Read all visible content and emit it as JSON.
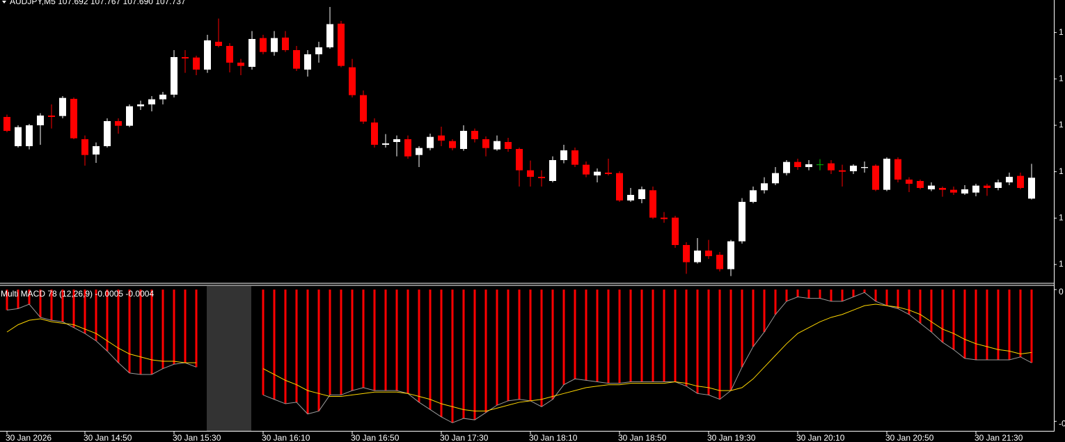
{
  "chart_data": [
    {
      "type": "candlestick",
      "title": "AUDJPY,M5  107.692 107.767 107.690 107.737",
      "categories": [
        "30 Jan 2026",
        null,
        null,
        null,
        null,
        null,
        null,
        "30 Jan 14:50",
        null,
        null,
        null,
        null,
        null,
        null,
        null,
        "30 Jan 15:30",
        null,
        null,
        null,
        null,
        null,
        null,
        null,
        "30 Jan 16:10",
        null,
        null,
        null,
        null,
        null,
        null,
        null,
        "30 Jan 16:50",
        null,
        null,
        null,
        null,
        null,
        null,
        null,
        "30 Jan 17:30",
        null,
        null,
        null,
        null,
        null,
        null,
        null,
        "30 Jan 18:10",
        null,
        null,
        null,
        null,
        null,
        null,
        null,
        "30 Jan 18:50",
        null,
        null,
        null,
        null,
        null,
        null,
        null,
        "30 Jan 19:30",
        null,
        null,
        null,
        null,
        null,
        null,
        null,
        "30 Jan 20:10",
        null,
        null,
        null,
        null,
        null,
        null,
        null,
        "30 Jan 20:50",
        null,
        null,
        null,
        null,
        null,
        null,
        null,
        "30 Jan 21:30",
        null,
        null,
        null,
        null,
        null
      ],
      "open": [
        107.868,
        107.805,
        107.805,
        107.85,
        107.871,
        107.87,
        107.907,
        107.82,
        107.787,
        107.805,
        107.859,
        107.849,
        107.891,
        107.895,
        107.906,
        107.916,
        107.997,
        107.996,
        107.97,
        108.03,
        108.021,
        107.985,
        107.976,
        108.038,
        108.008,
        108.039,
        108.012,
        107.97,
        108.003,
        108.018,
        108.069,
        107.975,
        107.915,
        107.856,
        107.808,
        107.814,
        107.82,
        107.786,
        107.801,
        107.828,
        107.816,
        107.799,
        107.838,
        107.82,
        107.798,
        107.814,
        107.799,
        107.753,
        107.739,
        107.73,
        107.775,
        107.796,
        107.765,
        107.742,
        107.748,
        107.747,
        107.688,
        107.691,
        107.71,
        107.651,
        107.651,
        107.592,
        107.555,
        107.58,
        107.571,
        107.54,
        107.6,
        107.685,
        107.71,
        107.725,
        107.747,
        107.771,
        107.76,
        107.765,
        107.768,
        107.753,
        107.751,
        107.758,
        107.763,
        107.711,
        107.777,
        107.733,
        107.73,
        107.712,
        107.715,
        107.711,
        107.703,
        107.705,
        107.72,
        107.715,
        107.727,
        107.741,
        107.692
      ],
      "high": [
        107.873,
        107.85,
        107.853,
        107.876,
        107.895,
        107.913,
        107.91,
        107.828,
        107.813,
        107.865,
        107.865,
        107.895,
        107.903,
        107.913,
        107.922,
        108.012,
        108.012,
        108.0,
        108.045,
        108.08,
        108.027,
        107.993,
        108.053,
        108.045,
        108.053,
        108.053,
        108.021,
        108.012,
        108.03,
        108.105,
        108.075,
        107.993,
        107.925,
        107.865,
        107.831,
        107.828,
        107.828,
        107.805,
        107.832,
        107.847,
        107.82,
        107.85,
        107.843,
        107.826,
        107.828,
        107.823,
        107.802,
        107.774,
        107.753,
        107.783,
        107.808,
        107.802,
        107.772,
        107.757,
        107.778,
        107.751,
        107.715,
        107.718,
        107.718,
        107.663,
        107.655,
        107.598,
        107.607,
        107.603,
        107.577,
        107.603,
        107.693,
        107.718,
        107.738,
        107.76,
        107.775,
        107.778,
        107.775,
        107.777,
        107.775,
        107.765,
        107.766,
        107.772,
        107.766,
        107.781,
        107.781,
        107.738,
        107.733,
        107.727,
        107.718,
        107.718,
        107.721,
        107.724,
        107.724,
        107.733,
        107.748,
        107.748,
        107.767
      ],
      "low": [
        107.835,
        107.802,
        107.798,
        107.808,
        107.843,
        107.865,
        107.82,
        107.763,
        107.769,
        107.802,
        107.832,
        107.846,
        107.883,
        107.88,
        107.895,
        107.91,
        107.963,
        107.958,
        107.963,
        108.018,
        107.964,
        107.958,
        107.97,
        108.003,
        108.0,
        108.008,
        107.967,
        107.955,
        107.985,
        108.015,
        107.975,
        107.91,
        107.853,
        107.802,
        107.802,
        107.783,
        107.778,
        107.76,
        107.796,
        107.805,
        107.796,
        107.795,
        107.813,
        107.783,
        107.795,
        107.793,
        107.718,
        107.718,
        107.718,
        107.727,
        107.768,
        107.76,
        107.738,
        107.727,
        107.742,
        107.685,
        107.685,
        107.682,
        107.648,
        107.64,
        107.586,
        107.53,
        107.552,
        107.562,
        107.535,
        107.525,
        107.595,
        107.682,
        107.703,
        107.721,
        107.742,
        107.754,
        107.753,
        107.753,
        107.745,
        107.718,
        107.745,
        107.748,
        107.708,
        107.708,
        107.727,
        107.706,
        107.712,
        107.708,
        107.696,
        107.7,
        107.7,
        107.697,
        107.698,
        107.71,
        107.721,
        107.712,
        107.69
      ],
      "close": [
        107.838,
        107.846,
        107.85,
        107.871,
        107.868,
        107.909,
        107.822,
        107.786,
        107.805,
        107.859,
        107.849,
        107.891,
        107.895,
        107.906,
        107.916,
        107.997,
        107.994,
        107.97,
        108.033,
        108.021,
        107.985,
        107.978,
        108.036,
        108.008,
        108.038,
        108.012,
        107.972,
        108.003,
        108.018,
        108.068,
        107.978,
        107.915,
        107.858,
        107.808,
        107.811,
        107.82,
        107.783,
        107.801,
        107.825,
        107.817,
        107.801,
        107.838,
        107.82,
        107.801,
        107.816,
        107.799,
        107.753,
        107.739,
        107.736,
        107.775,
        107.796,
        107.765,
        107.744,
        107.75,
        107.745,
        107.688,
        107.7,
        107.712,
        107.651,
        107.648,
        107.592,
        107.555,
        107.58,
        107.568,
        107.54,
        107.6,
        107.685,
        107.71,
        107.725,
        107.747,
        107.771,
        107.76,
        107.766,
        107.765,
        107.753,
        107.75,
        107.763,
        107.76,
        107.711,
        107.778,
        107.733,
        107.724,
        107.715,
        107.72,
        107.711,
        107.705,
        107.712,
        107.72,
        107.715,
        107.727,
        107.739,
        107.715,
        107.737
      ],
      "up_color": "#ffffff",
      "down_color": "#ff0000",
      "doji_color": "#00c000",
      "ylim": [
        107.5125,
        108.12
      ],
      "yticks": [
        {
          "value": 108.05,
          "label": "1"
        },
        {
          "value": 107.95,
          "label": "1"
        },
        {
          "value": 107.85,
          "label": "1"
        },
        {
          "value": 107.75,
          "label": "1"
        },
        {
          "value": 107.65,
          "label": "1"
        },
        {
          "value": 107.55,
          "label": "1"
        }
      ]
    },
    {
      "type": "macd",
      "title": "Multi MACD 78 (12,26,9) -0.0005 -0.0004",
      "series": [
        {
          "type": "bar",
          "color": "#ff0000",
          "line_color": "#9a9a9a",
          "values": [
            -0.00014,
            -0.00013,
            -0.0001,
            -0.00019,
            -0.00021,
            -0.00022,
            -0.00026,
            -0.0003,
            -0.00035,
            -0.00042,
            -0.0005,
            -0.00057,
            -0.00058,
            -0.00058,
            -0.00054,
            -0.00051,
            -0.0005,
            -0.00053,
            null,
            null,
            null,
            null,
            null,
            -0.00072,
            -0.00075,
            -0.00078,
            -0.00077,
            -0.00085,
            -0.00083,
            -0.00072,
            -0.00072,
            -0.00069,
            -0.00067,
            -0.00069,
            -0.00069,
            -0.00069,
            -0.00071,
            -0.00077,
            -0.00082,
            -0.00087,
            -0.00091,
            -0.00088,
            -0.00089,
            -0.00084,
            -0.00079,
            -0.00076,
            -0.00075,
            -0.00076,
            -0.0008,
            -0.00075,
            -0.00065,
            -0.00061,
            -0.00062,
            -0.00063,
            -0.00064,
            -0.00064,
            -0.00063,
            -0.00063,
            -0.00063,
            -0.00063,
            -0.00063,
            -0.00066,
            -0.00071,
            -0.00072,
            -0.00075,
            -0.00069,
            -0.00053,
            -0.00039,
            -0.00029,
            -0.00017,
            -8e-05,
            -5e-05,
            -6e-05,
            -6e-05,
            -8e-05,
            -8e-05,
            -5e-05,
            -2e-05,
            -8e-05,
            -0.00011,
            -0.00013,
            -0.00017,
            -0.00023,
            -0.00029,
            -0.00036,
            -0.00041,
            -0.00047,
            -0.00048,
            -0.00048,
            -0.00048,
            -0.00048,
            -0.00046,
            -0.0005
          ]
        },
        {
          "type": "line",
          "color": "#ffd700",
          "values": [
            -0.00029,
            -0.00024,
            -0.00021,
            -0.0002,
            -0.00022,
            -0.00023,
            -0.00024,
            -0.00027,
            -0.0003,
            -0.00035,
            -0.0004,
            -0.00044,
            -0.00046,
            -0.00048,
            -0.00049,
            -0.00049,
            -0.0005,
            -0.0005,
            null,
            null,
            null,
            null,
            null,
            -0.00054,
            -0.00058,
            -0.00062,
            -0.00065,
            -0.00069,
            -0.00071,
            -0.00073,
            -0.00073,
            -0.00072,
            -0.00071,
            -0.0007,
            -0.0007,
            -0.0007,
            -0.00071,
            -0.00073,
            -0.00075,
            -0.00078,
            -0.0008,
            -0.00082,
            -0.00083,
            -0.00083,
            -0.00081,
            -0.00079,
            -0.00077,
            -0.00076,
            -0.00075,
            -0.00073,
            -0.00071,
            -0.00069,
            -0.00067,
            -0.00066,
            -0.00065,
            -0.00065,
            -0.00064,
            -0.00064,
            -0.00064,
            -0.00064,
            -0.00063,
            -0.00064,
            -0.00066,
            -0.00067,
            -0.00069,
            -0.00069,
            -0.00067,
            -0.00061,
            -0.00053,
            -0.00045,
            -0.00037,
            -0.0003,
            -0.00026,
            -0.00022,
            -0.00019,
            -0.00017,
            -0.00014,
            -0.00011,
            -0.0001,
            -0.00011,
            -0.00012,
            -0.00014,
            -0.00017,
            -0.00022,
            -0.00027,
            -0.0003,
            -0.00034,
            -0.00037,
            -0.00039,
            -0.00041,
            -0.00042,
            -0.00044,
            -0.00043
          ]
        }
      ],
      "ylim": [
        -0.00097,
        0
      ],
      "yticks": [
        0,
        {
          "value": -0.0009,
          "label": "-0"
        }
      ]
    }
  ]
}
